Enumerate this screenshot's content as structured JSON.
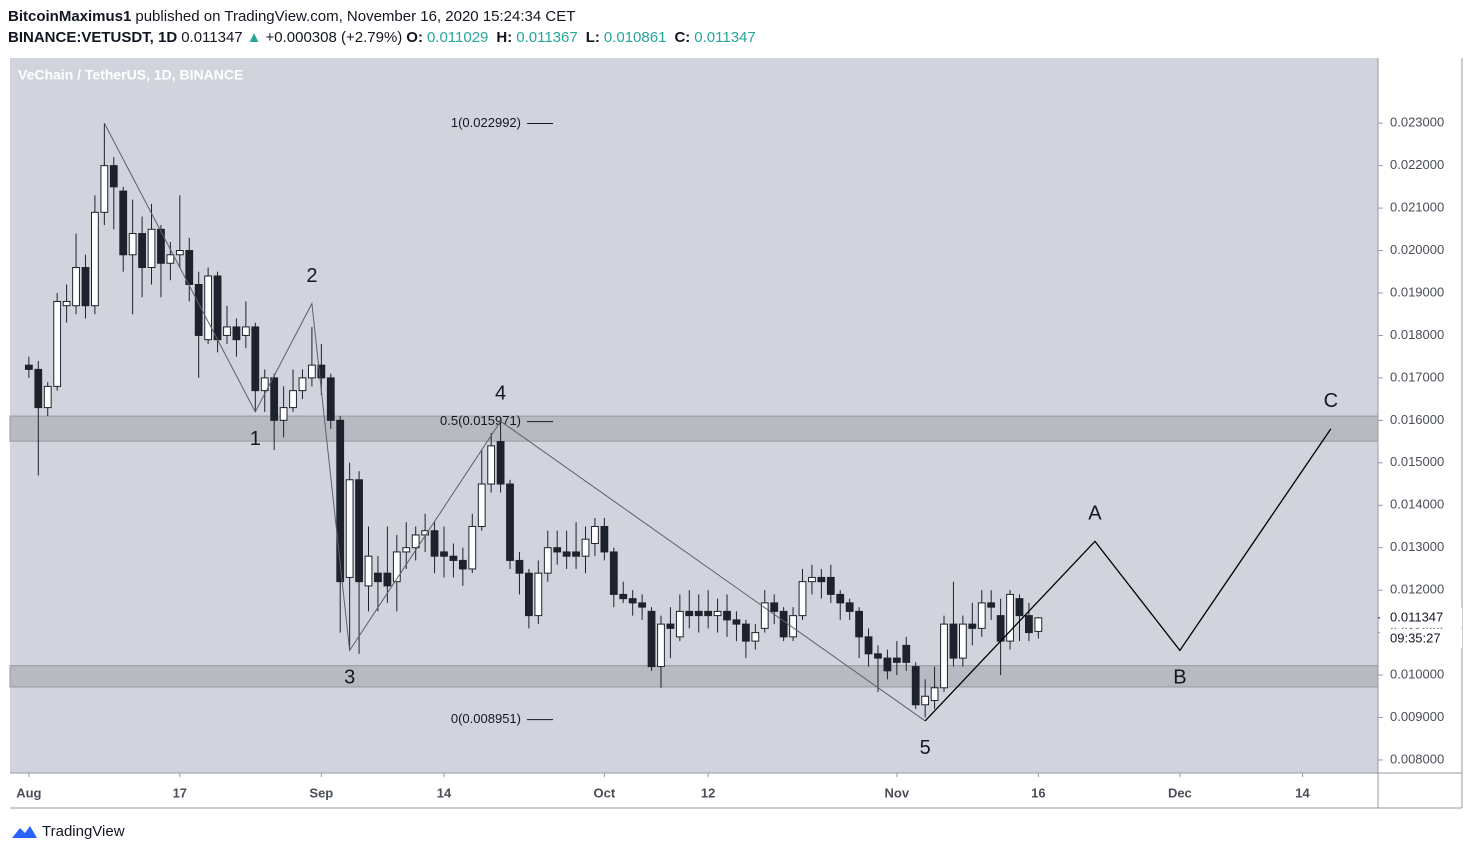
{
  "header": {
    "author": "BitcoinMaximus1",
    "published": "published on TradingView.com, November 16, 2020 15:24:34 CET",
    "symbol": "BINANCE:VETUSDT, 1D",
    "last": "0.011347",
    "arrow": "▲",
    "change": "+0.000308 (+2.79%)",
    "ohlc": [
      {
        "label": "O:",
        "value": "0.011029"
      },
      {
        "label": "H:",
        "value": "0.011367"
      },
      {
        "label": "L:",
        "value": "0.010861"
      },
      {
        "label": "C:",
        "value": "0.011347"
      }
    ]
  },
  "footer": {
    "brand": "TradingView"
  },
  "chart_data": {
    "type": "candlestick",
    "title": "VeChain / TetherUS, 1D, BINANCE",
    "y_unit": "USDT",
    "up_color": "#ffffff",
    "down_color": "#1e222d",
    "wick_color": "#1e222d",
    "background": "#d1d4dc",
    "xlim": [
      "2020-07-30",
      "2020-12-22"
    ],
    "xticks": [
      {
        "value": "2020-08-01",
        "label": "Aug"
      },
      {
        "value": "2020-08-17",
        "label": "17"
      },
      {
        "value": "2020-09-01",
        "label": "Sep"
      },
      {
        "value": "2020-09-14",
        "label": "14"
      },
      {
        "value": "2020-10-01",
        "label": "Oct"
      },
      {
        "value": "2020-10-12",
        "label": "12"
      },
      {
        "value": "2020-11-01",
        "label": "Nov"
      },
      {
        "value": "2020-11-16",
        "label": "16"
      },
      {
        "value": "2020-12-01",
        "label": "Dec"
      },
      {
        "value": "2020-12-14",
        "label": "14"
      }
    ],
    "ylim": [
      0.007693,
      0.024535
    ],
    "yticks": [
      {
        "value": 0.008,
        "label": "0.008000"
      },
      {
        "value": 0.009,
        "label": "0.009000"
      },
      {
        "value": 0.01,
        "label": "0.010000"
      },
      {
        "value": 0.011,
        "label": "0.011000"
      },
      {
        "value": 0.012,
        "label": "0.012000"
      },
      {
        "value": 0.013,
        "label": "0.013000"
      },
      {
        "value": 0.014,
        "label": "0.014000"
      },
      {
        "value": 0.015,
        "label": "0.015000"
      },
      {
        "value": 0.016,
        "label": "0.016000"
      },
      {
        "value": 0.017,
        "label": "0.017000"
      },
      {
        "value": 0.018,
        "label": "0.018000"
      },
      {
        "value": 0.019,
        "label": "0.019000"
      },
      {
        "value": 0.02,
        "label": "0.020000"
      },
      {
        "value": 0.021,
        "label": "0.021000"
      },
      {
        "value": 0.022,
        "label": "0.022000"
      },
      {
        "value": 0.023,
        "label": "0.023000"
      }
    ],
    "last_price": {
      "value": 0.011347,
      "label": "0.011347"
    },
    "countdown": "09:35:27",
    "x": [
      "2020-08-01",
      "2020-08-02",
      "2020-08-03",
      "2020-08-04",
      "2020-08-05",
      "2020-08-06",
      "2020-08-07",
      "2020-08-08",
      "2020-08-09",
      "2020-08-10",
      "2020-08-11",
      "2020-08-12",
      "2020-08-13",
      "2020-08-14",
      "2020-08-15",
      "2020-08-16",
      "2020-08-17",
      "2020-08-18",
      "2020-08-19",
      "2020-08-20",
      "2020-08-21",
      "2020-08-22",
      "2020-08-23",
      "2020-08-24",
      "2020-08-25",
      "2020-08-26",
      "2020-08-27",
      "2020-08-28",
      "2020-08-29",
      "2020-08-30",
      "2020-08-31",
      "2020-09-01",
      "2020-09-02",
      "2020-09-03",
      "2020-09-04",
      "2020-09-05",
      "2020-09-06",
      "2020-09-07",
      "2020-09-08",
      "2020-09-09",
      "2020-09-10",
      "2020-09-11",
      "2020-09-12",
      "2020-09-13",
      "2020-09-14",
      "2020-09-15",
      "2020-09-16",
      "2020-09-17",
      "2020-09-18",
      "2020-09-19",
      "2020-09-20",
      "2020-09-21",
      "2020-09-22",
      "2020-09-23",
      "2020-09-24",
      "2020-09-25",
      "2020-09-26",
      "2020-09-27",
      "2020-09-28",
      "2020-09-29",
      "2020-09-30",
      "2020-10-01",
      "2020-10-02",
      "2020-10-03",
      "2020-10-04",
      "2020-10-05",
      "2020-10-06",
      "2020-10-07",
      "2020-10-08",
      "2020-10-09",
      "2020-10-10",
      "2020-10-11",
      "2020-10-12",
      "2020-10-13",
      "2020-10-14",
      "2020-10-15",
      "2020-10-16",
      "2020-10-17",
      "2020-10-18",
      "2020-10-19",
      "2020-10-20",
      "2020-10-21",
      "2020-10-22",
      "2020-10-23",
      "2020-10-24",
      "2020-10-25",
      "2020-10-26",
      "2020-10-27",
      "2020-10-28",
      "2020-10-29",
      "2020-10-30",
      "2020-10-31",
      "2020-11-01",
      "2020-11-02",
      "2020-11-03",
      "2020-11-04",
      "2020-11-05",
      "2020-11-06",
      "2020-11-07",
      "2020-11-08",
      "2020-11-09",
      "2020-11-10",
      "2020-11-11",
      "2020-11-12",
      "2020-11-13",
      "2020-11-14",
      "2020-11-15",
      "2020-11-16"
    ],
    "open": [
      0.0173,
      0.0172,
      0.0163,
      0.0168,
      0.0187,
      0.0187,
      0.0196,
      0.0187,
      0.0209,
      0.022,
      0.0214,
      0.0199,
      0.0204,
      0.0196,
      0.0205,
      0.0197,
      0.0199,
      0.02,
      0.0192,
      0.0179,
      0.0194,
      0.018,
      0.0182,
      0.018,
      0.0182,
      0.0167,
      0.017,
      0.016,
      0.0163,
      0.0167,
      0.017,
      0.0173,
      0.017,
      0.016,
      0.0123,
      0.0146,
      0.0121,
      0.0124,
      0.0124,
      0.0122,
      0.0129,
      0.013,
      0.0133,
      0.0134,
      0.0129,
      0.0128,
      0.0127,
      0.0125,
      0.0135,
      0.0145,
      0.0155,
      0.0145,
      0.0127,
      0.0124,
      0.0114,
      0.0124,
      0.013,
      0.0129,
      0.0129,
      0.0128,
      0.0131,
      0.0135,
      0.0129,
      0.0119,
      0.0118,
      0.0117,
      0.0115,
      0.0102,
      0.0112,
      0.0109,
      0.0115,
      0.0115,
      0.0115,
      0.0114,
      0.0115,
      0.0113,
      0.0112,
      0.0108,
      0.0111,
      0.0117,
      0.0115,
      0.0109,
      0.0114,
      0.0122,
      0.0123,
      0.0123,
      0.0119,
      0.0117,
      0.0115,
      0.0109,
      0.0105,
      0.0104,
      0.0104,
      0.0107,
      0.0102,
      0.0093,
      0.0094,
      0.0097,
      0.0112,
      0.0104,
      0.0112,
      0.0111,
      0.0117,
      0.0114,
      0.0108,
      0.0118,
      0.0114,
      0.011029
    ],
    "high": [
      0.0175,
      0.0174,
      0.0169,
      0.019,
      0.0192,
      0.0204,
      0.0199,
      0.0213,
      0.023,
      0.0222,
      0.0215,
      0.0212,
      0.0208,
      0.0211,
      0.0206,
      0.0202,
      0.0213,
      0.0203,
      0.0195,
      0.0196,
      0.0195,
      0.0187,
      0.0184,
      0.0188,
      0.0183,
      0.0172,
      0.0171,
      0.0168,
      0.0172,
      0.0172,
      0.0182,
      0.0178,
      0.0171,
      0.0161,
      0.015,
      0.0148,
      0.0135,
      0.0128,
      0.0135,
      0.0133,
      0.0136,
      0.0135,
      0.0138,
      0.0136,
      0.0135,
      0.0131,
      0.013,
      0.0138,
      0.0153,
      0.0157,
      0.016,
      0.0146,
      0.0129,
      0.0125,
      0.0127,
      0.0134,
      0.0134,
      0.0134,
      0.0136,
      0.0135,
      0.0137,
      0.0137,
      0.013,
      0.0122,
      0.012,
      0.0119,
      0.0116,
      0.0114,
      0.0116,
      0.0119,
      0.012,
      0.0119,
      0.012,
      0.0118,
      0.0119,
      0.0115,
      0.0113,
      0.0112,
      0.012,
      0.0119,
      0.0116,
      0.0116,
      0.0125,
      0.0126,
      0.0125,
      0.0126,
      0.012,
      0.0118,
      0.0116,
      0.0111,
      0.0107,
      0.0106,
      0.0108,
      0.0109,
      0.0103,
      0.0099,
      0.0102,
      0.0114,
      0.0122,
      0.0114,
      0.0117,
      0.012,
      0.012,
      0.0118,
      0.012,
      0.0119,
      0.0117,
      0.011367
    ],
    "low": [
      0.017,
      0.0147,
      0.0161,
      0.0167,
      0.0183,
      0.0185,
      0.0184,
      0.0185,
      0.0206,
      0.0205,
      0.0195,
      0.0185,
      0.0189,
      0.0192,
      0.0189,
      0.0193,
      0.0196,
      0.0188,
      0.017,
      0.0178,
      0.0176,
      0.0178,
      0.0175,
      0.0177,
      0.0162,
      0.0162,
      0.0153,
      0.0156,
      0.0162,
      0.0165,
      0.0168,
      0.0166,
      0.0158,
      0.011,
      0.0106,
      0.0105,
      0.0115,
      0.0115,
      0.0117,
      0.0115,
      0.0125,
      0.0127,
      0.0129,
      0.0124,
      0.0123,
      0.0123,
      0.0121,
      0.0124,
      0.0134,
      0.0143,
      0.0143,
      0.0125,
      0.0119,
      0.0111,
      0.0112,
      0.0122,
      0.0126,
      0.0125,
      0.0125,
      0.0124,
      0.0128,
      0.0127,
      0.0116,
      0.0117,
      0.0114,
      0.0113,
      0.0101,
      0.0097,
      0.0104,
      0.0108,
      0.0111,
      0.011,
      0.0111,
      0.011,
      0.0109,
      0.0108,
      0.0104,
      0.0106,
      0.011,
      0.0112,
      0.0108,
      0.0108,
      0.0113,
      0.0119,
      0.0118,
      0.0117,
      0.0113,
      0.0113,
      0.0104,
      0.0102,
      0.0096,
      0.0099,
      0.01,
      0.0101,
      0.0092,
      0.009,
      0.0092,
      0.0096,
      0.0102,
      0.0102,
      0.0107,
      0.0109,
      0.0113,
      0.01,
      0.0106,
      0.0108,
      0.0108,
      0.010861
    ],
    "close": [
      0.0172,
      0.0163,
      0.0168,
      0.0188,
      0.0188,
      0.0196,
      0.0187,
      0.0209,
      0.022,
      0.0215,
      0.0199,
      0.0204,
      0.0196,
      0.0205,
      0.0197,
      0.0199,
      0.02,
      0.0192,
      0.018,
      0.0194,
      0.0179,
      0.0182,
      0.0179,
      0.0182,
      0.0167,
      0.017,
      0.016,
      0.0163,
      0.0167,
      0.017,
      0.0173,
      0.017,
      0.016,
      0.0122,
      0.0146,
      0.0122,
      0.0128,
      0.0122,
      0.0121,
      0.0129,
      0.013,
      0.0133,
      0.0134,
      0.0128,
      0.0128,
      0.0127,
      0.0125,
      0.0135,
      0.0145,
      0.0154,
      0.0145,
      0.0127,
      0.0124,
      0.0114,
      0.0124,
      0.013,
      0.0129,
      0.0128,
      0.0128,
      0.0132,
      0.0135,
      0.0129,
      0.0119,
      0.0118,
      0.0117,
      0.0116,
      0.0102,
      0.0112,
      0.0111,
      0.0115,
      0.0114,
      0.0114,
      0.0114,
      0.0115,
      0.0113,
      0.0112,
      0.0108,
      0.011,
      0.0117,
      0.0115,
      0.0109,
      0.0114,
      0.0122,
      0.0123,
      0.0122,
      0.0119,
      0.0117,
      0.0115,
      0.0109,
      0.0105,
      0.0104,
      0.0101,
      0.0103,
      0.0103,
      0.0093,
      0.0095,
      0.0097,
      0.0112,
      0.0104,
      0.0112,
      0.0111,
      0.0117,
      0.0116,
      0.0108,
      0.0119,
      0.0114,
      0.011,
      0.011347
    ],
    "zones": [
      {
        "low": 0.01551,
        "high": 0.0161,
        "color": "#b8bac2"
      },
      {
        "low": 0.00972,
        "high": 0.01022,
        "color": "#b8bac2"
      }
    ],
    "fib_levels": [
      {
        "value": 0.022992,
        "label": "1(0.022992)"
      },
      {
        "value": 0.015971,
        "label": "0.5(0.015971)"
      },
      {
        "value": 0.008951,
        "label": "0(0.008951)"
      }
    ],
    "drawings": [
      {
        "color": "#5d606b",
        "points": [
          {
            "x": "2020-08-09",
            "y": 0.023
          },
          {
            "x": "2020-08-25",
            "y": 0.0162,
            "label": "1"
          },
          {
            "x": "2020-08-31",
            "y": 0.01875,
            "label": "2"
          },
          {
            "x": "2020-09-04",
            "y": 0.01058,
            "label": "3"
          },
          {
            "x": "2020-09-20",
            "y": 0.01598,
            "label": "4"
          },
          {
            "x": "2020-11-04",
            "y": 0.00892,
            "label": "5"
          }
        ]
      },
      {
        "color": "#000000",
        "points": [
          {
            "x": "2020-11-04",
            "y": 0.00892
          },
          {
            "x": "2020-11-22",
            "y": 0.01315,
            "label": "A"
          },
          {
            "x": "2020-12-01",
            "y": 0.01058,
            "label": "B"
          },
          {
            "x": "2020-12-17",
            "y": 0.0158,
            "label": "C"
          }
        ]
      }
    ]
  }
}
